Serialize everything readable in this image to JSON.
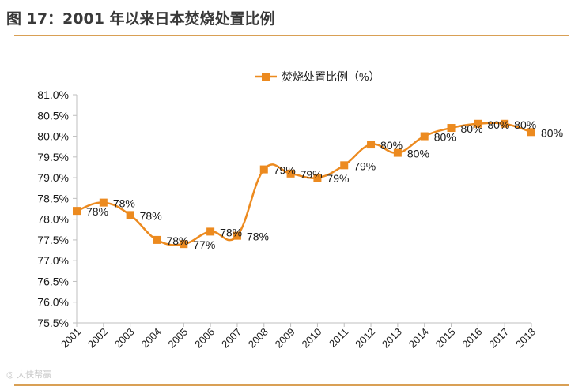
{
  "figure": {
    "title": "图 17：2001 年以来日本焚烧处置比例",
    "watermark": "大侠帮赢"
  },
  "colors": {
    "series": "#ec8a1f",
    "accent_rule": "#d9a055",
    "axis": "#bfbfbf",
    "text": "#1a1a1a"
  },
  "chart_data": {
    "type": "line",
    "title": "",
    "xlabel": "",
    "ylabel": "",
    "categories": [
      "2001",
      "2002",
      "2003",
      "2004",
      "2005",
      "2006",
      "2007",
      "2008",
      "2009",
      "2010",
      "2011",
      "2012",
      "2013",
      "2014",
      "2015",
      "2016",
      "2017",
      "2018"
    ],
    "series": [
      {
        "name": "焚烧处置比例（%）",
        "values": [
          78.2,
          78.4,
          78.1,
          77.5,
          77.4,
          77.7,
          77.6,
          79.2,
          79.1,
          79.0,
          79.3,
          79.8,
          79.6,
          80.0,
          80.2,
          80.3,
          80.3,
          80.1
        ],
        "labels": [
          "78%",
          "78%",
          "78%",
          "78%",
          "77%",
          "78%",
          "78%",
          "79%",
          "79%",
          "79%",
          "79%",
          "80%",
          "80%",
          "80%",
          "80%",
          "80%",
          "80%",
          "80%"
        ]
      }
    ],
    "ylim": [
      75.5,
      81.0
    ],
    "yticks": [
      "75.5%",
      "76.0%",
      "76.5%",
      "77.0%",
      "77.5%",
      "78.0%",
      "78.5%",
      "79.0%",
      "79.5%",
      "80.0%",
      "80.5%",
      "81.0%"
    ],
    "legend_position": "top-center",
    "grid": false,
    "smooth": true,
    "marker": "square"
  }
}
